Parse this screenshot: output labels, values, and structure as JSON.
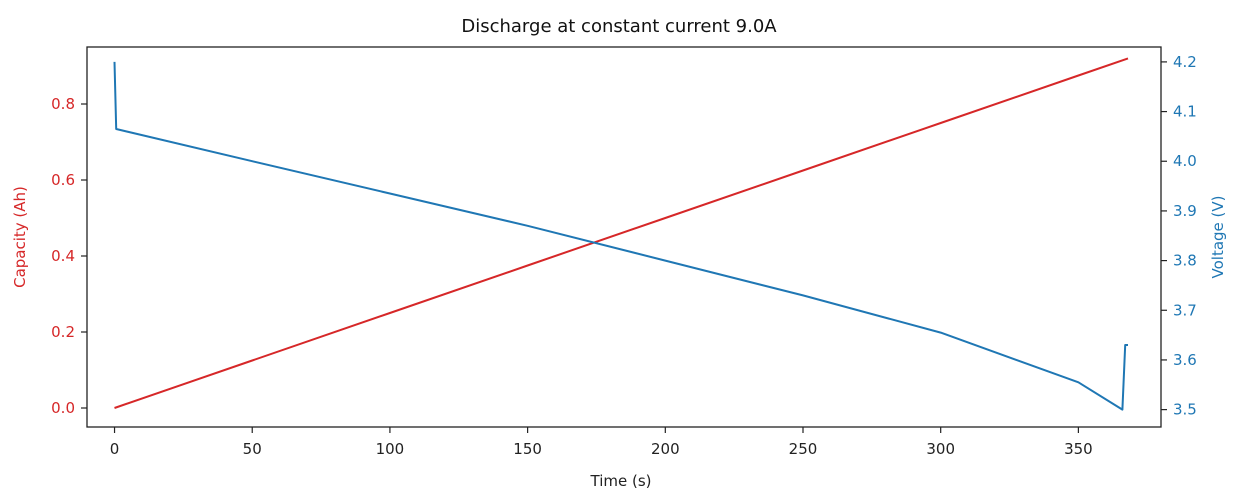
{
  "chart_data": {
    "type": "line",
    "title": "Discharge at constant current 9.0A",
    "xlabel": "Time (s)",
    "ylabel_left": "Capacity (Ah)",
    "ylabel_right": "Voltage (V)",
    "xlim": [
      -10,
      380
    ],
    "ylim_left": [
      -0.05,
      0.95
    ],
    "ylim_right": [
      3.465,
      4.23
    ],
    "x_ticks": [
      0,
      50,
      100,
      150,
      200,
      250,
      300,
      350
    ],
    "y_left_ticks": [
      "0.0",
      "0.2",
      "0.4",
      "0.6",
      "0.8"
    ],
    "y_right_ticks": [
      "3.5",
      "3.6",
      "3.7",
      "3.8",
      "3.9",
      "4.0",
      "4.1",
      "4.2"
    ],
    "grid": false,
    "legend": "none",
    "colors": {
      "capacity": "#d62728",
      "voltage": "#1f77b4",
      "left_axis": "#d62728",
      "right_axis": "#1f77b4"
    },
    "series": [
      {
        "axis": "left",
        "color": "#d62728",
        "points": [
          [
            0,
            0.0
          ],
          [
            50,
            0.125
          ],
          [
            100,
            0.25
          ],
          [
            150,
            0.375
          ],
          [
            200,
            0.5
          ],
          [
            250,
            0.625
          ],
          [
            300,
            0.75
          ],
          [
            350,
            0.875
          ],
          [
            368,
            0.92
          ]
        ]
      },
      {
        "axis": "right",
        "color": "#1f77b4",
        "points": [
          [
            0,
            4.2
          ],
          [
            0.6,
            4.065
          ],
          [
            50,
            4.0
          ],
          [
            100,
            3.935
          ],
          [
            150,
            3.87
          ],
          [
            200,
            3.8
          ],
          [
            250,
            3.73
          ],
          [
            300,
            3.655
          ],
          [
            350,
            3.555
          ],
          [
            366,
            3.5
          ],
          [
            367,
            3.63
          ],
          [
            368,
            3.63
          ]
        ]
      }
    ]
  }
}
